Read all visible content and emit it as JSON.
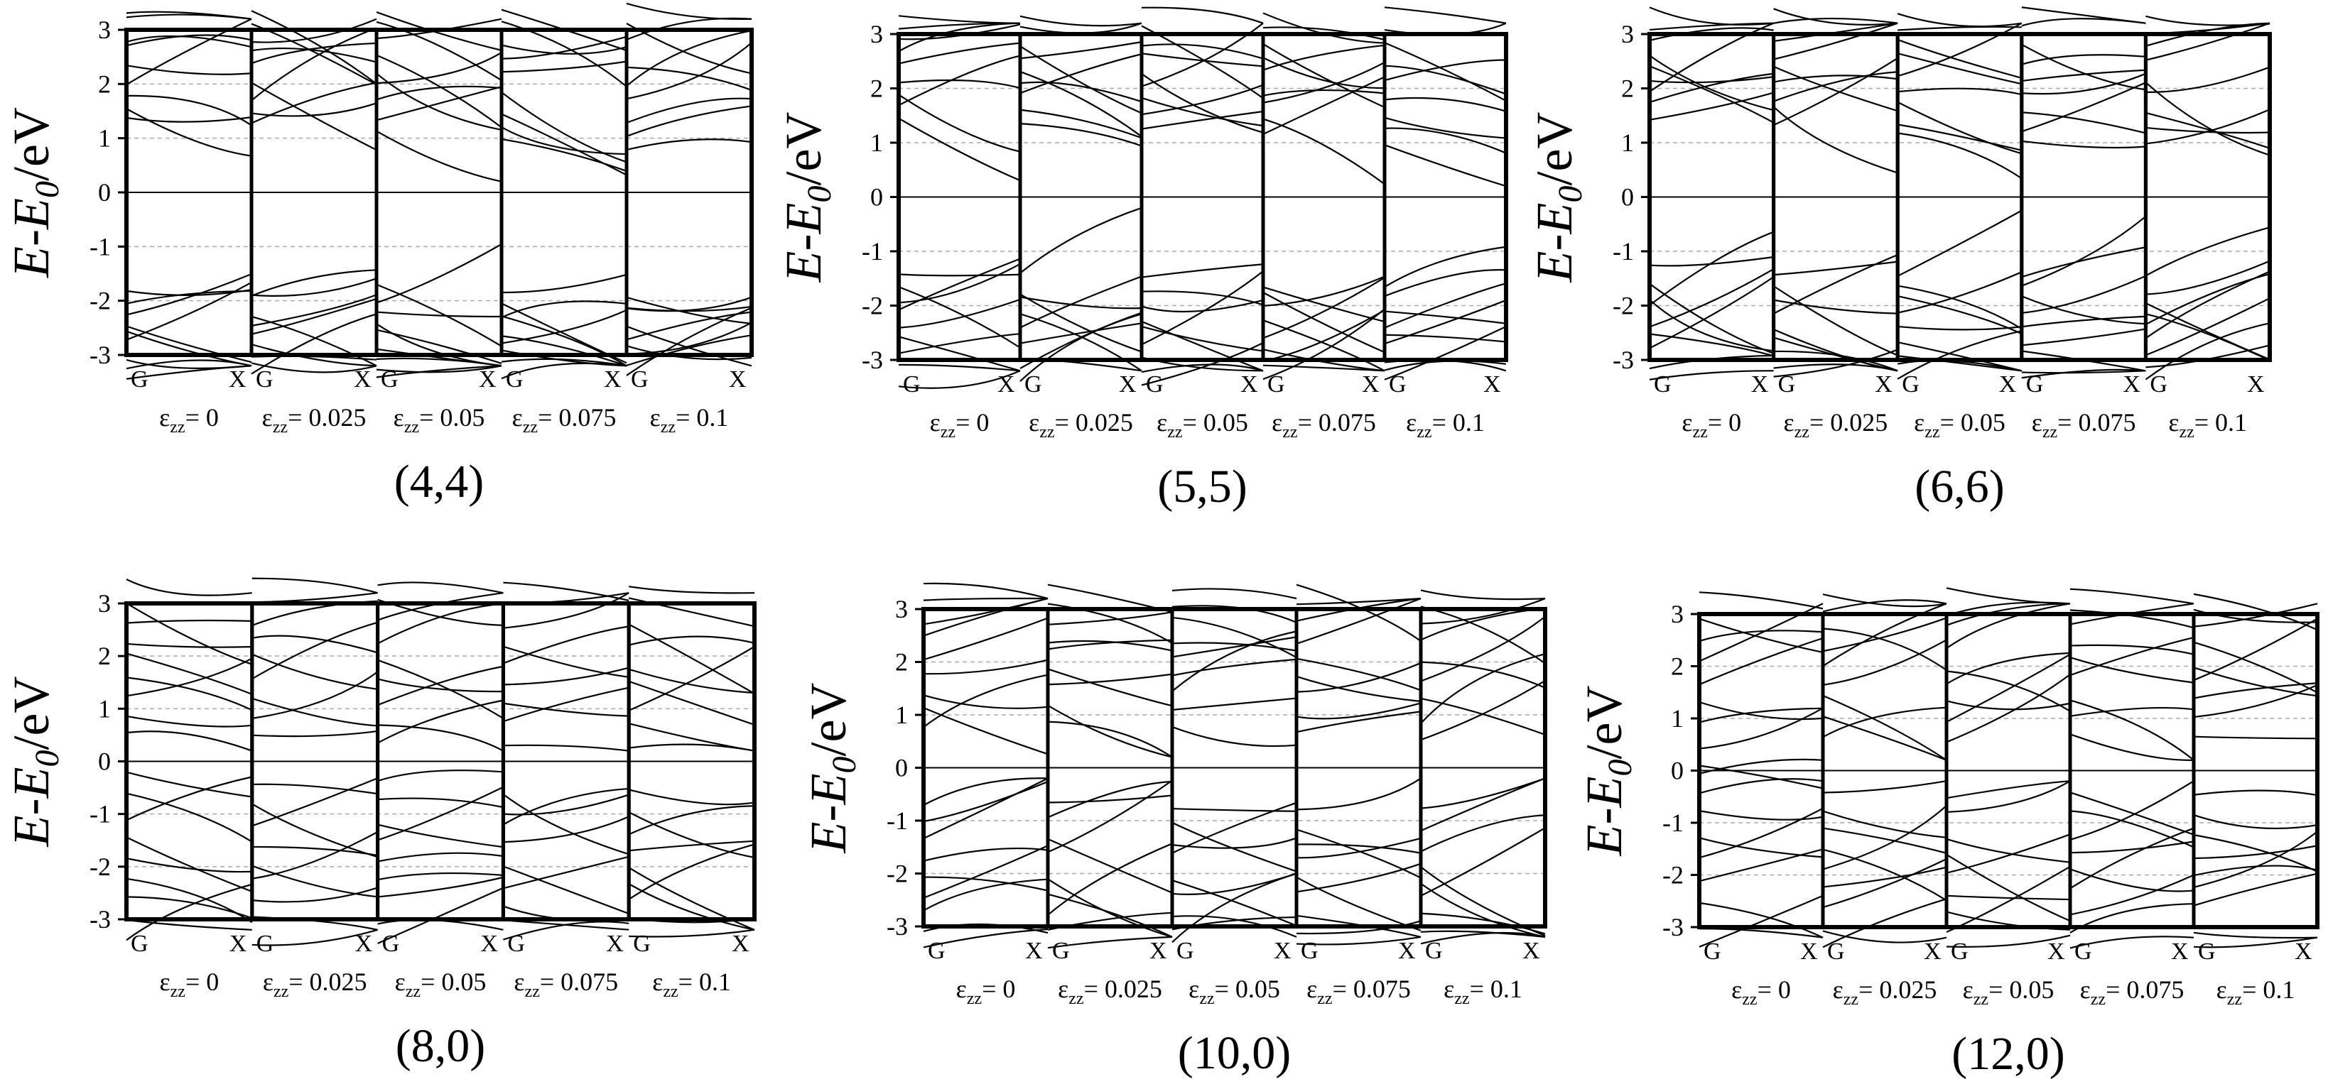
{
  "figure": {
    "y_axis_label": {
      "E": "E",
      "dash": "-",
      "E0": "E",
      "sub": "0",
      "unit": "/eV"
    },
    "y_ticks": [
      "3",
      "2",
      "1",
      "0",
      "-1",
      "-2",
      "-3"
    ],
    "x_tick_start": "G",
    "x_tick_end": "X",
    "strain_symbol": "ε",
    "strain_subscript": "zz",
    "strain_labels": [
      "= 0",
      "= 0.025",
      "= 0.05",
      "= 0.075",
      "= 0.1"
    ]
  },
  "chart_data": [
    {
      "type": "line",
      "title": "(4,4)",
      "ylabel": "E-E0/eV",
      "ylim": [
        -3,
        3
      ],
      "x_ticks": [
        "G",
        "X"
      ],
      "panels": [
        "εzz = 0",
        "εzz = 0.025",
        "εzz = 0.05",
        "εzz = 0.075",
        "εzz = 0.1"
      ],
      "fermi_level": 0,
      "grid": "dashed gray at ±1, ±2",
      "series_note": "band structure curves digitized approximately",
      "conduction_band_min_at_G": [
        1.3,
        1.2,
        1.05,
        0.9,
        0.7
      ],
      "valence_band_max_at_G": [
        -1.8,
        -1.8,
        -1.8,
        -1.8,
        -1.85
      ]
    },
    {
      "type": "line",
      "title": "(5,5)",
      "ylabel": "E-E0/eV",
      "ylim": [
        -3,
        3
      ],
      "x_ticks": [
        "G",
        "X"
      ],
      "panels": [
        "εzz = 0",
        "εzz = 0.025",
        "εzz = 0.05",
        "εzz = 0.075",
        "εzz = 0.1"
      ],
      "fermi_level": 0,
      "conduction_band_min_at_G": [
        1.4,
        1.3,
        1.2,
        1.1,
        0.9
      ],
      "valence_band_max_at_G": [
        -1.4,
        -1.45,
        -1.5,
        -1.6,
        -1.7
      ]
    },
    {
      "type": "line",
      "title": "(6,6)",
      "ylabel": "E-E0/eV",
      "ylim": [
        -3,
        3
      ],
      "x_ticks": [
        "G",
        "X"
      ],
      "panels": [
        "εzz = 0",
        "εzz = 0.025",
        "εzz = 0.05",
        "εzz = 0.075",
        "εzz = 0.1"
      ],
      "fermi_level": 0,
      "conduction_band_min_at_G": [
        1.4,
        1.3,
        1.15,
        1.0,
        0.95
      ],
      "valence_band_max_at_G": [
        -1.3,
        -1.35,
        -1.4,
        -1.4,
        -1.45
      ]
    },
    {
      "type": "line",
      "title": "(8,0)",
      "ylabel": "E-E0/eV",
      "ylim": [
        -3,
        3
      ],
      "x_ticks": [
        "G",
        "X"
      ],
      "panels": [
        "εzz = 0",
        "εzz = 0.025",
        "εzz = 0.05",
        "εzz = 0.075",
        "εzz = 0.1"
      ],
      "fermi_level": 0,
      "conduction_band_min_at_G": [
        0.55,
        0.5,
        0.35,
        0.3,
        0.25
      ],
      "valence_band_max_at_G": [
        -0.3,
        -0.4,
        -0.45,
        -0.55,
        -0.6
      ]
    },
    {
      "type": "line",
      "title": "(10,0)",
      "ylabel": "E-E0/eV",
      "ylim": [
        -3,
        3
      ],
      "x_ticks": [
        "G",
        "X"
      ],
      "panels": [
        "εzz = 0",
        "εzz = 0.025",
        "εzz = 0.05",
        "εzz = 0.075",
        "εzz = 0.1"
      ],
      "fermi_level": 0,
      "conduction_band_min_at_G": [
        0.8,
        0.9,
        0.8,
        0.7,
        0.55
      ],
      "valence_band_max_at_G": [
        -0.7,
        -0.65,
        -0.7,
        -0.8,
        -0.85
      ]
    },
    {
      "type": "line",
      "title": "(12,0)",
      "ylabel": "E-E0/eV",
      "ylim": [
        -3,
        3
      ],
      "x_ticks": [
        "G",
        "X"
      ],
      "panels": [
        "εzz = 0",
        "εzz = 0.025",
        "εzz = 0.05",
        "εzz = 0.075",
        "εzz = 0.1"
      ],
      "fermi_level": 0,
      "conduction_band_min_at_G": [
        0.0,
        0.7,
        0.6,
        0.75,
        0.7
      ],
      "valence_band_max_at_G": [
        0.0,
        -0.4,
        -0.5,
        -0.5,
        -0.5
      ]
    }
  ]
}
